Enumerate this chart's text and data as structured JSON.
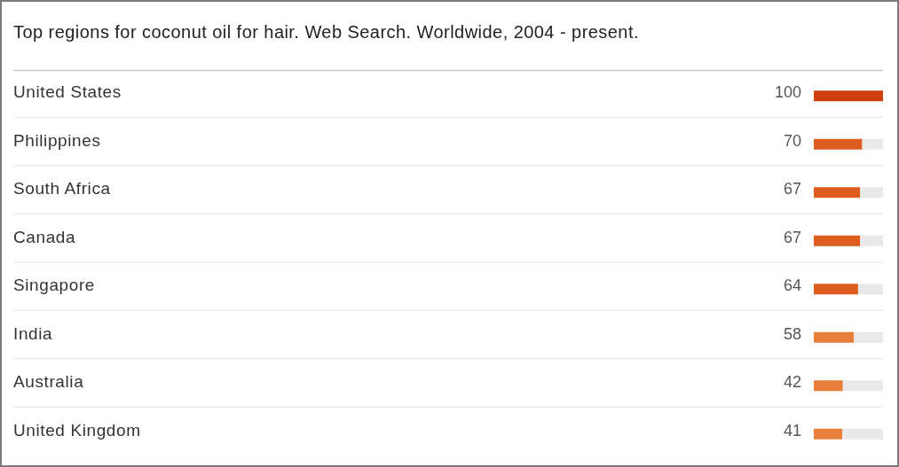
{
  "chart_data": {
    "type": "bar",
    "orientation": "horizontal",
    "stacked": true,
    "title": "Top regions for coconut oil for hair. Web Search. Worldwide, 2004 - present.",
    "categories": [
      "United States",
      "Philippines",
      "South Africa",
      "Canada",
      "Singapore",
      "India",
      "Australia",
      "United Kingdom"
    ],
    "series": [
      {
        "values": [
          100,
          70,
          67,
          67,
          64,
          58,
          42,
          41
        ],
        "colors": [
          "#cf400f",
          "#dc5c1e",
          "#dc5c1e",
          "#dc5c1e",
          "#dc5c1e",
          "#e8803a",
          "#e8803a",
          "#e8803a"
        ],
        "value_labels": [
          "100",
          "70",
          "67",
          "67",
          "64",
          "58",
          "42",
          "41"
        ]
      },
      {
        "values": [
          null,
          30,
          33,
          33,
          36,
          42,
          58,
          59
        ],
        "color": "#e9e9e9"
      }
    ],
    "xlim": [
      0,
      100
    ],
    "tick_labels": "y"
  }
}
